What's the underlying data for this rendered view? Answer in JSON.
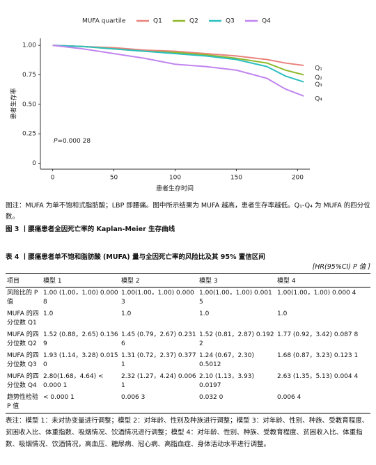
{
  "chart_data": {
    "type": "line",
    "legend_title": "MUFA quartile",
    "y_label": "患者生存率",
    "x_label": "患者生存时间",
    "annotation": {
      "p": "P",
      "text": "=0.000 28"
    },
    "x": [
      0,
      25,
      50,
      75,
      100,
      125,
      150,
      175,
      190,
      205
    ],
    "series": [
      {
        "name": "Q1",
        "end_label": "Q₁",
        "color": "#e8837b",
        "values": [
          1.0,
          0.99,
          0.98,
          0.96,
          0.95,
          0.93,
          0.91,
          0.88,
          0.85,
          0.83
        ]
      },
      {
        "name": "Q2",
        "end_label": "Q₂",
        "color": "#8fb82a",
        "values": [
          1.0,
          0.99,
          0.97,
          0.95,
          0.94,
          0.92,
          0.89,
          0.85,
          0.79,
          0.75
        ]
      },
      {
        "name": "Q3",
        "end_label": "Q₃",
        "color": "#2cbfc0",
        "values": [
          1.0,
          0.99,
          0.97,
          0.95,
          0.93,
          0.91,
          0.88,
          0.82,
          0.74,
          0.69
        ]
      },
      {
        "name": "Q4",
        "end_label": "Q₄",
        "color": "#c184ef",
        "values": [
          1.0,
          0.97,
          0.93,
          0.89,
          0.84,
          0.82,
          0.79,
          0.72,
          0.63,
          0.57
        ]
      }
    ],
    "xlim": [
      -10,
      210
    ],
    "xticks": [
      0,
      50,
      100,
      150,
      200
    ],
    "ylim": [
      -0.05,
      1.06
    ],
    "yticks": [
      0,
      {
        "value": 0.25,
        "label": "0.25"
      },
      {
        "value": 0.5,
        "label": "0.50"
      },
      {
        "value": 0.75,
        "label": "0.75"
      },
      {
        "value": 1,
        "label": "1.00"
      }
    ]
  },
  "figure_note": "图注：MUFA 为单不饱和式脂肪酸；LBP 即腰痛。图中所示结果为 MUFA 越高，患者生存率越低。Q₁-Q₄ 为 MUFA 的四分位数。",
  "figure_caption": "图 3 丨腰痛患者全因死亡率的 Kaplan-Meier 生存曲线",
  "table": {
    "title": "表 4 丨腰痛患者单不饱和脂肪酸 (MUFA) 量与全因死亡率的风险比及其 95% 置信区间",
    "unit": "[HR(95%CI) P 值 ]",
    "header": [
      "项目",
      "模型 1",
      "模型 2",
      "模型 3",
      "模型 4"
    ],
    "rows": [
      [
        "风险比的 P 值",
        "1.00 (1.00，1.00) 0.000 8",
        "1.00(1.00，1.00) 0.000 3",
        "1.00(1.00，1.00) 0.001 5",
        "1.00(1.00，1.00) 0.000 4"
      ],
      [
        "MUFA 的四分位数 Q1",
        "1.0",
        "1.0",
        "1.0",
        "1.0"
      ],
      [
        "MUFA 的四分位数 Q2",
        "1.52 (0.88，2.65) 0.136 9",
        "1.45 (0.79，2.67) 0.231 6",
        "1.52 (0.81，2.87) 0.192 2",
        "1.77 (0.92，3.42) 0.087 8"
      ],
      [
        "MUFA 的四分位数 Q3",
        "1.93 (1.14，3.28) 0.015 0",
        "1.31 (0.72，2.37) 0.377 1",
        "1.24 (0.67，2.30) 0.5012",
        "1.68 (0.87，3.23) 0.123 1"
      ],
      [
        "MUFA 的四分位数 Q4",
        "2.80(1.68，4.64) < 0.000 1",
        "2.32 (1.27，4.24) 0.006 1",
        "2.10 (1.13，3.93) 0.0197",
        "2.63 (1.35，5.13) 0.004 4"
      ],
      [
        "趋势性检验 P 值",
        "< 0.000 1",
        "0.006 3",
        "0.032 0",
        "0.006 4"
      ]
    ],
    "note": "表注：模型 1：未对协变量进行调整；模型 2：对年龄、性别及种族进行调整；模型 3：对年龄、性别、种族、受教育程度、贫困收入比、体重指数、吸烟情况、饮酒情况进行调整；模型 4：对年龄、性别、种族、受教育程度、贫困收入比、体重指数、吸烟情况、饮酒情况，高血压、糖尿病、冠心病、高脂血症、身体活动水平进行调整。"
  }
}
